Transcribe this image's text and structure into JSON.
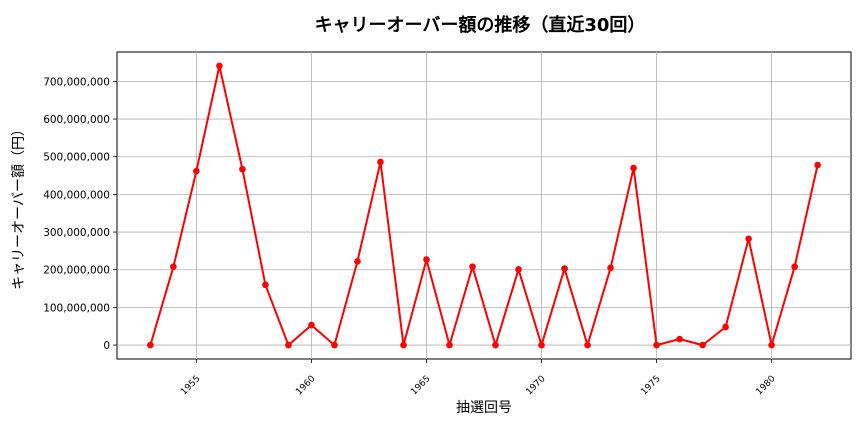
{
  "chart_data": {
    "type": "line",
    "title": "キャリーオーバー額の推移（直近30回）",
    "xlabel": "抽選回号",
    "ylabel": "キャリーオーバー額（円）",
    "x": [
      1953,
      1954,
      1955,
      1956,
      1957,
      1958,
      1959,
      1960,
      1961,
      1962,
      1963,
      1964,
      1965,
      1966,
      1967,
      1968,
      1969,
      1970,
      1971,
      1972,
      1973,
      1974,
      1975,
      1976,
      1977,
      1978,
      1979,
      1980,
      1981,
      1982
    ],
    "series": [
      {
        "values": [
          0,
          208000000,
          462000000,
          741000000,
          467000000,
          160000000,
          0,
          53000000,
          0,
          222000000,
          486000000,
          0,
          227000000,
          0,
          208000000,
          0,
          201000000,
          0,
          203000000,
          0,
          205000000,
          470000000,
          0,
          16000000,
          0,
          48000000,
          282000000,
          0,
          208000000,
          478000000
        ],
        "color": "#ff0000"
      }
    ],
    "xticks": [
      "1955",
      "1960",
      "1965",
      "1970",
      "1975",
      "1980"
    ],
    "yticks": [
      "0",
      "100,000,000",
      "200,000,000",
      "300,000,000",
      "400,000,000",
      "500,000,000",
      "600,000,000",
      "700,000,000"
    ],
    "xlim": [
      1951.55,
      1983.45
    ],
    "ylim": [
      -37000000,
      778000000
    ],
    "grid": true,
    "legend": "none"
  }
}
